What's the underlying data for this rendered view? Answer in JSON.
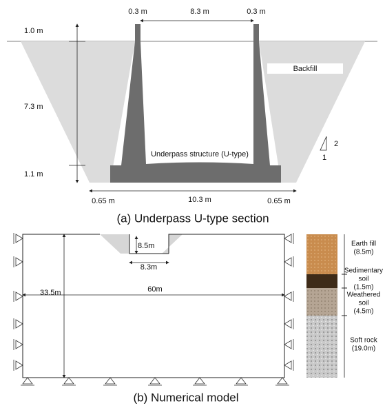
{
  "section": {
    "caption": "(a)  Underpass U-type section",
    "structure_label": "Underpass structure (U-type)",
    "backfill_label": "Backfill",
    "top_dims": [
      "0.3 m",
      "8.3 m",
      "0.3 m"
    ],
    "left_dims": [
      "1.0 m",
      "7.3 m",
      "1.1 m"
    ],
    "bottom_dims": [
      "0.65 m",
      "10.3 m",
      "0.65 m"
    ],
    "slope": [
      "2",
      "1"
    ]
  },
  "model": {
    "caption": "(b)  Numerical model",
    "dims": {
      "excavation_depth": "8.5m",
      "excavation_width": "8.3m",
      "height": "33.5m",
      "width": "60m"
    },
    "layers": [
      {
        "lines": [
          "Earth fill",
          "(8.5m)"
        ]
      },
      {
        "lines": [
          "Sedimentary",
          "soil",
          "(1.5m)"
        ]
      },
      {
        "lines": [
          "Weathered",
          "soil",
          "(4.5m)"
        ]
      },
      {
        "lines": [
          "Soft rock",
          "(19.0m)"
        ]
      }
    ]
  }
}
